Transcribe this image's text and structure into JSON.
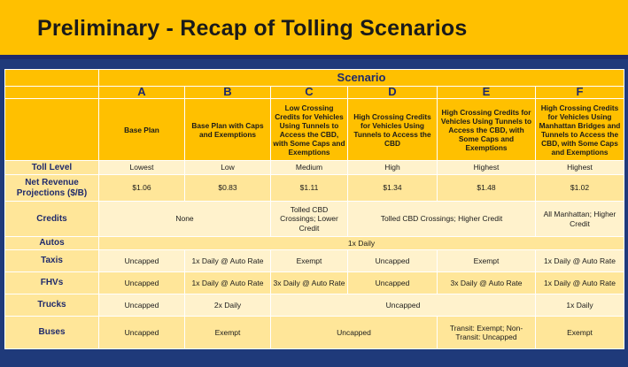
{
  "slide": {
    "title": "Preliminary - Recap of Tolling Scenarios"
  },
  "table": {
    "group_header": "Scenario",
    "columns": [
      {
        "letter": "A",
        "description": "Base Plan"
      },
      {
        "letter": "B",
        "description": "Base Plan with Caps and Exemptions"
      },
      {
        "letter": "C",
        "description": "Low Crossing Credits for Vehicles Using Tunnels to Access the CBD, with Some Caps and Exemptions"
      },
      {
        "letter": "D",
        "description": "High Crossing Credits for Vehicles Using Tunnels to Access the CBD"
      },
      {
        "letter": "E",
        "description": "High Crossing Credits for Vehicles Using Tunnels to Access the CBD, with Some Caps and Exemptions"
      },
      {
        "letter": "F",
        "description": "High Crossing Credits for Vehicles Using Manhattan Bridges and Tunnels to Access the CBD, with Some Caps and Exemptions"
      }
    ],
    "rows": {
      "toll_level": {
        "label": "Toll Level",
        "values": [
          "Lowest",
          "Low",
          "Medium",
          "High",
          "Highest",
          "Highest"
        ]
      },
      "net_revenue": {
        "label": "Net Revenue Projections ($/B)",
        "values": [
          "$1.06",
          "$0.83",
          "$1.11",
          "$1.34",
          "$1.48",
          "$1.02"
        ]
      },
      "credits": {
        "label": "Credits",
        "ab": "None",
        "c": "Tolled CBD Crossings; Lower Credit",
        "de": "Tolled CBD Crossings; Higher Credit",
        "f": "All Manhattan; Higher Credit"
      },
      "autos": {
        "label": "Autos",
        "all": "1x Daily"
      },
      "taxis": {
        "label": "Taxis",
        "values": [
          "Uncapped",
          "1x Daily @ Auto Rate",
          "Exempt",
          "Uncapped",
          "Exempt",
          "1x Daily @ Auto Rate"
        ]
      },
      "fhvs": {
        "label": "FHVs",
        "values": [
          "Uncapped",
          "1x Daily @ Auto Rate",
          "3x Daily @ Auto Rate",
          "Uncapped",
          "3x Daily @ Auto Rate",
          "1x Daily @ Auto Rate"
        ]
      },
      "trucks": {
        "label": "Trucks",
        "a": "Uncapped",
        "b": "2x Daily",
        "cde": "Uncapped",
        "f": "1x Daily"
      },
      "buses": {
        "label": "Buses",
        "a": "Uncapped",
        "b": "Exempt",
        "cd": "Uncapped",
        "e": "Transit: Exempt; Non-Transit: Uncapped",
        "f": "Exempt"
      }
    }
  },
  "colors": {
    "gold": "#ffc000",
    "light_row": "#fff2cc",
    "medium_row": "#ffe699",
    "navy": "#1f2a6b",
    "border": "#ffffff"
  }
}
